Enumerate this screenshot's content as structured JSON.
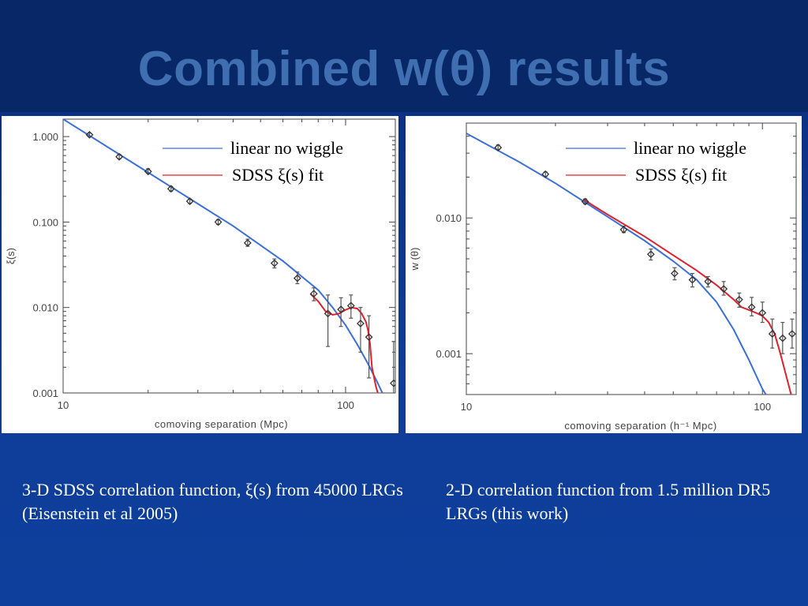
{
  "title": "Combined w(θ) results",
  "colors": {
    "background": "#0e3f9c",
    "title": "#3f6fb0",
    "linear": "#3a6fdc",
    "sdss_fit": "#e0202a"
  },
  "captions": {
    "left": "3-D SDSS correlation function, ξ(s) from 45000 LRGs (Eisenstein et al 2005)",
    "right": "2-D correlation function from 1.5 million DR5 LRGs (this work)"
  },
  "chart_data": [
    {
      "type": "scatter",
      "xlabel": "comoving separation (Mpc)",
      "ylabel": "ξ(s)",
      "xscale": "log",
      "yscale": "log",
      "xlim": [
        10,
        150
      ],
      "ylim": [
        0.001,
        1.6
      ],
      "xticks": [
        {
          "v": 10,
          "label": "10"
        },
        {
          "v": 100,
          "label": "100"
        }
      ],
      "yticks": [
        {
          "v": 1.0,
          "label": "1.000"
        },
        {
          "v": 0.1,
          "label": "0.100"
        },
        {
          "v": 0.01,
          "label": "0.010"
        },
        {
          "v": 0.001,
          "label": "0.001"
        }
      ],
      "legend": {
        "position": "top-right",
        "entries": [
          "linear no wiggle",
          "SDSS ξ(s) fit"
        ]
      },
      "points": [
        {
          "x": 12.4,
          "y": 1.05,
          "lo": 1.0,
          "hi": 1.1
        },
        {
          "x": 15.8,
          "y": 0.58,
          "lo": 0.55,
          "hi": 0.62
        },
        {
          "x": 20.0,
          "y": 0.39,
          "lo": 0.37,
          "hi": 0.42
        },
        {
          "x": 24.1,
          "y": 0.245,
          "lo": 0.23,
          "hi": 0.26
        },
        {
          "x": 28.1,
          "y": 0.175,
          "lo": 0.165,
          "hi": 0.185
        },
        {
          "x": 35.4,
          "y": 0.1,
          "lo": 0.094,
          "hi": 0.107
        },
        {
          "x": 45.0,
          "y": 0.057,
          "lo": 0.052,
          "hi": 0.063
        },
        {
          "x": 56.0,
          "y": 0.033,
          "lo": 0.029,
          "hi": 0.037
        },
        {
          "x": 67.5,
          "y": 0.022,
          "lo": 0.019,
          "hi": 0.026
        },
        {
          "x": 77.2,
          "y": 0.0145,
          "lo": 0.012,
          "hi": 0.017
        },
        {
          "x": 86.6,
          "y": 0.0085,
          "lo": 0.0035,
          "hi": 0.014
        },
        {
          "x": 96.3,
          "y": 0.0095,
          "lo": 0.006,
          "hi": 0.013
        },
        {
          "x": 104.5,
          "y": 0.0105,
          "lo": 0.0075,
          "hi": 0.014
        },
        {
          "x": 113.0,
          "y": 0.0065,
          "lo": 0.003,
          "hi": 0.01
        },
        {
          "x": 121.0,
          "y": 0.0045,
          "lo": 0.0015,
          "hi": 0.008
        },
        {
          "x": 148.0,
          "y": 0.0013,
          "lo": 0.0009,
          "hi": 0.004
        }
      ],
      "series": [
        {
          "name": "linear no wiggle",
          "color": "#3a6fdc",
          "x": [
            10,
            20,
            40,
            60,
            80,
            90,
            100,
            110,
            120,
            130,
            135
          ],
          "y": [
            1.6,
            0.38,
            0.09,
            0.035,
            0.016,
            0.01,
            0.0062,
            0.0037,
            0.0022,
            0.0013,
            0.001
          ]
        },
        {
          "name": "SDSS ξ(s) fit",
          "color": "#e0202a",
          "x": [
            75,
            80,
            85,
            90,
            95,
            100,
            105,
            110,
            114,
            118,
            120,
            122,
            124,
            128,
            130,
            132
          ],
          "y": [
            0.0145,
            0.0118,
            0.009,
            0.0082,
            0.0085,
            0.0094,
            0.01,
            0.0097,
            0.0085,
            0.0068,
            0.0055,
            0.0038,
            0.002,
            0.0012,
            0.001,
            0.0008
          ]
        }
      ]
    },
    {
      "type": "scatter",
      "xlabel": "comoving separation (h⁻¹ Mpc)",
      "ylabel": "w (θ)",
      "xscale": "log",
      "yscale": "log",
      "xlim": [
        10,
        130
      ],
      "ylim": [
        0.0005,
        0.05
      ],
      "xticks": [
        {
          "v": 10,
          "label": "10"
        },
        {
          "v": 100,
          "label": "100"
        }
      ],
      "yticks": [
        {
          "v": 0.01,
          "label": "0.010"
        },
        {
          "v": 0.001,
          "label": "0.001"
        }
      ],
      "legend": {
        "position": "top-right",
        "entries": [
          "linear no wiggle",
          "SDSS ξ(s) fit"
        ]
      },
      "points": [
        {
          "x": 12.8,
          "y": 0.033,
          "lo": 0.032,
          "hi": 0.0345
        },
        {
          "x": 18.5,
          "y": 0.021,
          "lo": 0.0202,
          "hi": 0.0218
        },
        {
          "x": 25.2,
          "y": 0.0132,
          "lo": 0.0127,
          "hi": 0.0138
        },
        {
          "x": 34.0,
          "y": 0.0082,
          "lo": 0.0078,
          "hi": 0.0087
        },
        {
          "x": 42.0,
          "y": 0.0054,
          "lo": 0.0049,
          "hi": 0.0059
        },
        {
          "x": 50.5,
          "y": 0.0039,
          "lo": 0.0035,
          "hi": 0.0043
        },
        {
          "x": 58.0,
          "y": 0.0035,
          "lo": 0.0031,
          "hi": 0.0039
        },
        {
          "x": 65.5,
          "y": 0.0034,
          "lo": 0.0031,
          "hi": 0.0037
        },
        {
          "x": 74.0,
          "y": 0.003,
          "lo": 0.0027,
          "hi": 0.0034
        },
        {
          "x": 83.5,
          "y": 0.0025,
          "lo": 0.0022,
          "hi": 0.0028
        },
        {
          "x": 92.0,
          "y": 0.0022,
          "lo": 0.0019,
          "hi": 0.0026
        },
        {
          "x": 100.0,
          "y": 0.002,
          "lo": 0.0017,
          "hi": 0.0024
        },
        {
          "x": 108.0,
          "y": 0.0014,
          "lo": 0.0011,
          "hi": 0.0018
        },
        {
          "x": 117.0,
          "y": 0.0013,
          "lo": 0.001,
          "hi": 0.0017
        },
        {
          "x": 126.0,
          "y": 0.0014,
          "lo": 0.0011,
          "hi": 0.0018
        }
      ],
      "series": [
        {
          "name": "linear no wiggle",
          "color": "#3a6fdc",
          "x": [
            10,
            15,
            20,
            30,
            40,
            50,
            60,
            70,
            80,
            90,
            100,
            104
          ],
          "y": [
            0.042,
            0.026,
            0.018,
            0.0102,
            0.0068,
            0.0048,
            0.0035,
            0.0024,
            0.0015,
            0.0009,
            0.00055,
            0.00048
          ]
        },
        {
          "name": "SDSS ξ(s) fit",
          "color": "#e0202a",
          "x": [
            25,
            30,
            40,
            50,
            60,
            70,
            80,
            85,
            90,
            95,
            100,
            105,
            110,
            115,
            120,
            125
          ],
          "y": [
            0.0136,
            0.0106,
            0.0073,
            0.0053,
            0.0041,
            0.0032,
            0.0025,
            0.0022,
            0.0021,
            0.002,
            0.0019,
            0.0017,
            0.0014,
            0.001,
            0.0007,
            0.0005
          ]
        }
      ]
    }
  ]
}
